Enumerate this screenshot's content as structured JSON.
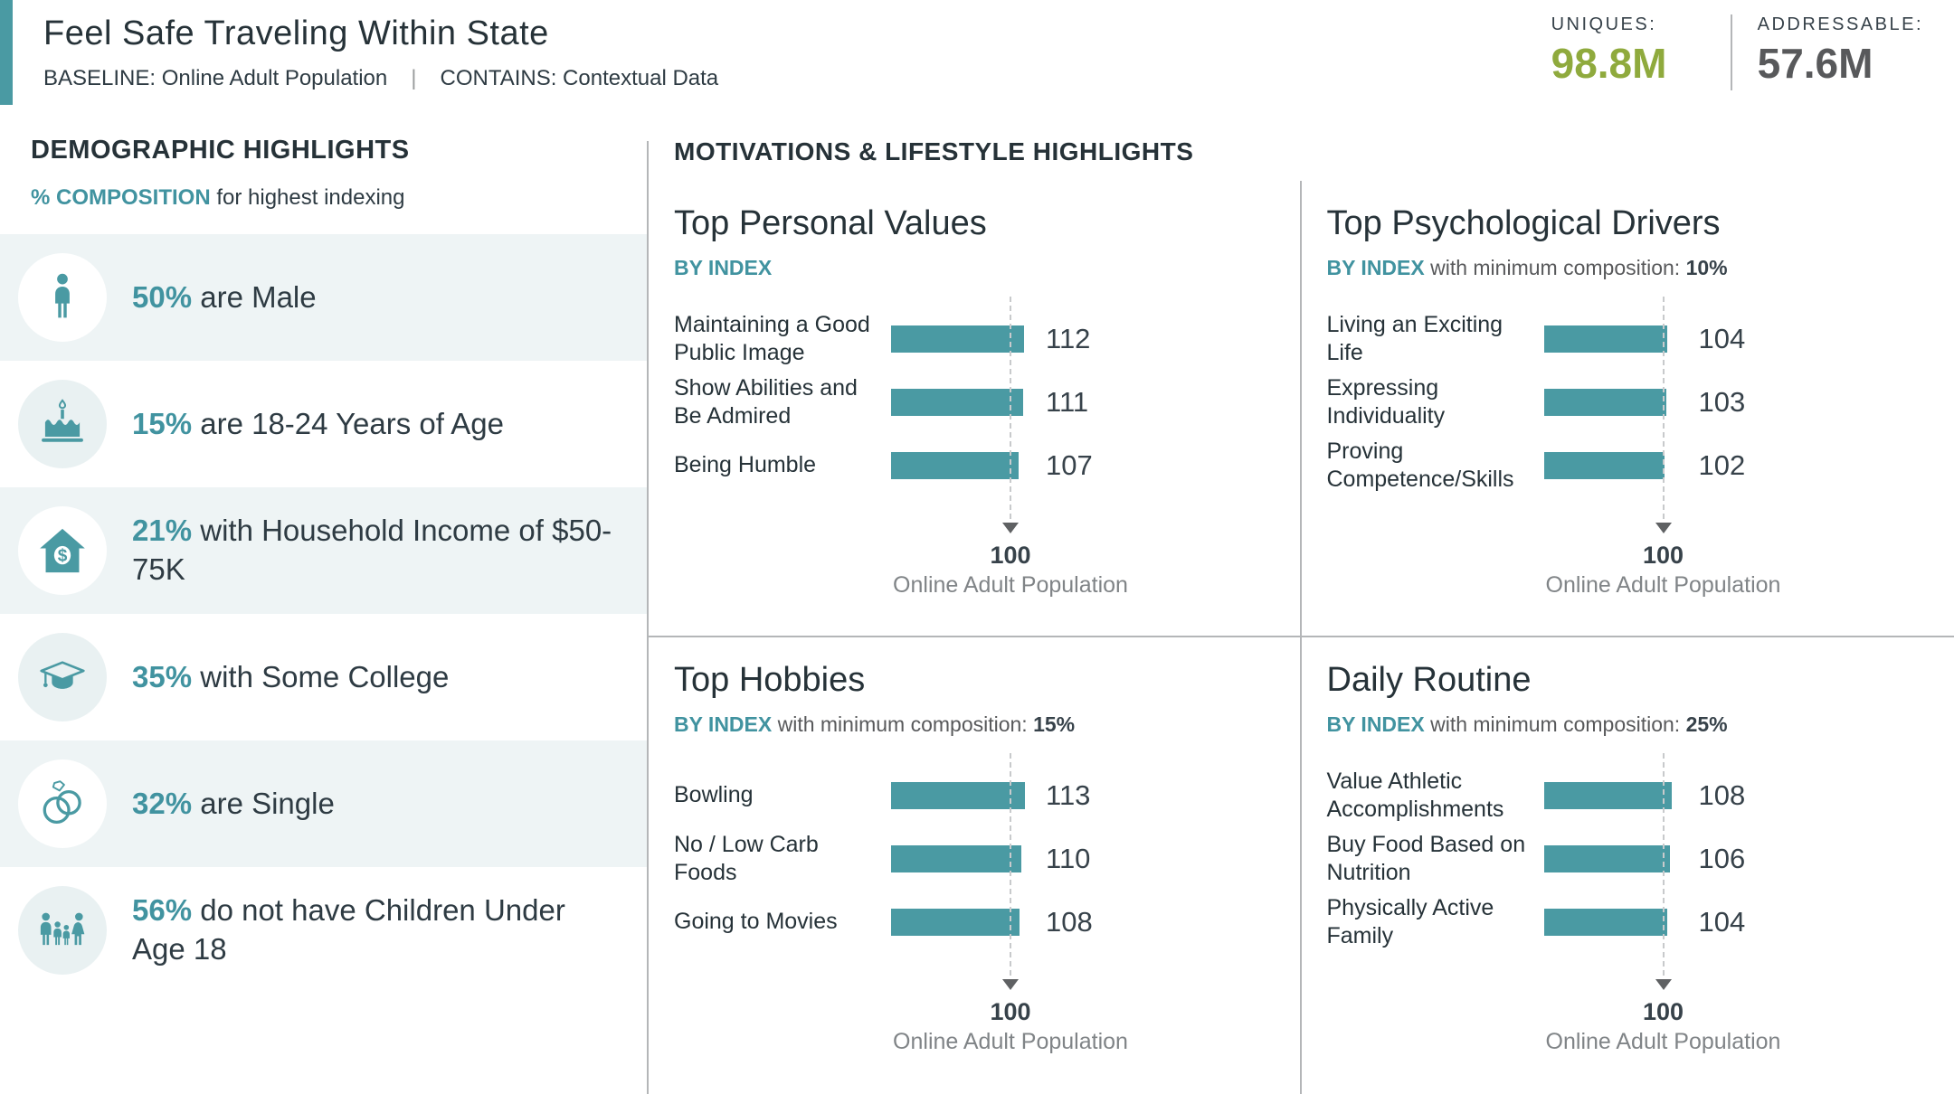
{
  "colors": {
    "teal": "#4a9aa3",
    "green": "#8faa3d",
    "dark": "#263238",
    "gray": "#808487",
    "divider": "#b4b6b8",
    "row_tint": "#eef4f5"
  },
  "header": {
    "title": "Feel Safe Traveling Within State",
    "baseline": "BASELINE: Online Adult Population",
    "separator": "|",
    "contains": "CONTAINS: Contextual Data",
    "uniques_label": "UNIQUES:",
    "uniques_value": "98.8M",
    "addressable_label": "ADDRESSABLE:",
    "addressable_value": "57.6M"
  },
  "sidebar": {
    "title": "DEMOGRAPHIC HIGHLIGHTS",
    "subtitle_highlight": "% COMPOSITION",
    "subtitle_rest": " for highest indexing",
    "items": [
      {
        "icon": "male-icon",
        "pct": "50%",
        "text": " are Male"
      },
      {
        "icon": "birthday-cake-icon",
        "pct": "15%",
        "text": " are 18-24 Years of Age"
      },
      {
        "icon": "house-income-icon",
        "pct": "21%",
        "text": " with Household Income of $50-75K"
      },
      {
        "icon": "graduation-cap-icon",
        "pct": "35%",
        "text": " with Some College"
      },
      {
        "icon": "wedding-rings-icon",
        "pct": "32%",
        "text": " are Single"
      },
      {
        "icon": "family-icon",
        "pct": "56%",
        "text": " do not have Children Under Age 18"
      }
    ]
  },
  "main": {
    "section_title": "MOTIVATIONS & LIFESTYLE HIGHLIGHTS",
    "baseline_value": "100",
    "baseline_caption": "Online Adult Population",
    "panels": [
      {
        "title": "Top Personal Values",
        "by_label": "BY INDEX",
        "comp_text": "",
        "comp_value": ""
      },
      {
        "title": "Top Psychological Drivers",
        "by_label": "BY INDEX",
        "comp_text": " with minimum composition: ",
        "comp_value": "10%"
      },
      {
        "title": "Top Hobbies",
        "by_label": "BY INDEX",
        "comp_text": " with minimum composition: ",
        "comp_value": "15%"
      },
      {
        "title": "Daily Routine",
        "by_label": "BY INDEX",
        "comp_text": " with minimum composition: ",
        "comp_value": "25%"
      }
    ]
  },
  "chart_data": [
    {
      "type": "bar",
      "orientation": "horizontal",
      "title": "Top Personal Values",
      "subtitle": "BY INDEX",
      "categories": [
        "Maintaining a Good Public Image",
        "Show Abilities and Be Admired",
        "Being Humble"
      ],
      "values": [
        112,
        111,
        107
      ],
      "baseline": 100,
      "baseline_label": "Online Adult Population",
      "xlim": [
        0,
        118
      ],
      "grid": false
    },
    {
      "type": "bar",
      "orientation": "horizontal",
      "title": "Top Psychological Drivers",
      "subtitle": "BY INDEX with minimum composition: 10%",
      "categories": [
        "Living an Exciting Life",
        "Expressing Individuality",
        "Proving Competence/Skills"
      ],
      "values": [
        104,
        103,
        102
      ],
      "baseline": 100,
      "baseline_label": "Online Adult Population",
      "xlim": [
        0,
        118
      ],
      "grid": false
    },
    {
      "type": "bar",
      "orientation": "horizontal",
      "title": "Top Hobbies",
      "subtitle": "BY INDEX with minimum composition: 15%",
      "categories": [
        "Bowling",
        "No / Low Carb Foods",
        "Going to Movies"
      ],
      "values": [
        113,
        110,
        108
      ],
      "baseline": 100,
      "baseline_label": "Online Adult Population",
      "xlim": [
        0,
        118
      ],
      "grid": false
    },
    {
      "type": "bar",
      "orientation": "horizontal",
      "title": "Daily Routine",
      "subtitle": "BY INDEX with minimum composition: 25%",
      "categories": [
        "Value Athletic Accomplishments",
        "Buy Food Based on Nutrition",
        "Physically Active Family"
      ],
      "values": [
        108,
        106,
        104
      ],
      "baseline": 100,
      "baseline_label": "Online Adult Population",
      "xlim": [
        0,
        118
      ],
      "grid": false
    }
  ]
}
